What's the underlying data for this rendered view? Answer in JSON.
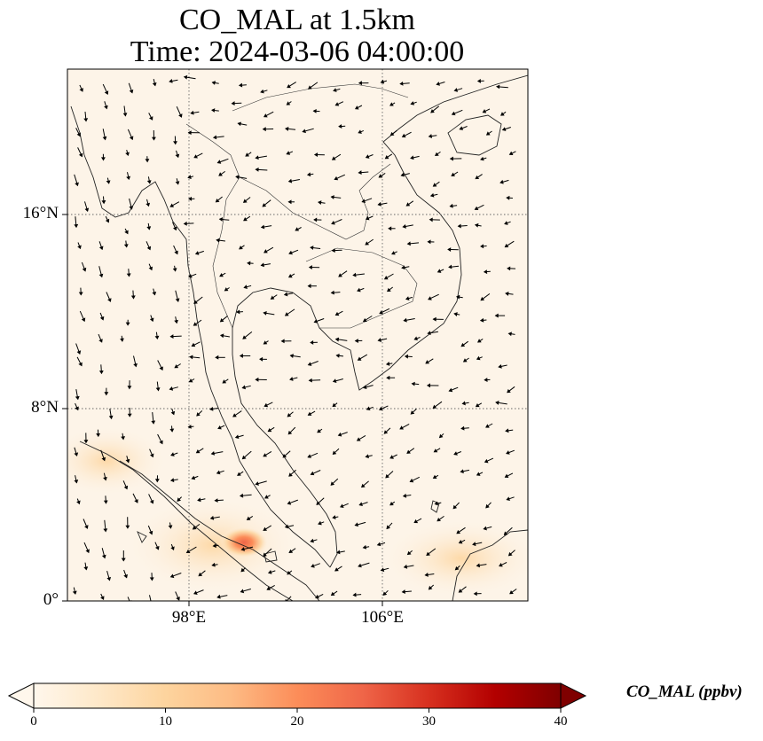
{
  "title": {
    "line1": "CO_MAL at 1.5km",
    "line2": "Time: 2024-03-06 04:00:00"
  },
  "axes": {
    "lat_ticks": [
      "16°N",
      "8°N",
      "0°"
    ],
    "lon_ticks": [
      "98°E",
      "106°E"
    ],
    "lat_range": [
      0,
      22
    ],
    "lon_range": [
      93,
      112
    ],
    "gridlines": "dotted"
  },
  "colorbar": {
    "label": "CO_MAL (ppbv)",
    "ticks": [
      "0",
      "10",
      "20",
      "30",
      "40"
    ],
    "range": [
      0,
      40
    ],
    "colormap": "OrRd",
    "extend": "both",
    "colors": [
      "#fff7ec",
      "#fee8c8",
      "#fdd49e",
      "#fdbb84",
      "#fc8d59",
      "#ef6548",
      "#d7301f",
      "#b30000",
      "#7f0000"
    ]
  },
  "map_features": {
    "background_color": "#fdf4e8",
    "plume_hotspot": {
      "lat": 2.5,
      "lon": 100.3,
      "value_ppbv": 18
    },
    "wind_vectors": true,
    "coastlines": true,
    "borders": true
  }
}
